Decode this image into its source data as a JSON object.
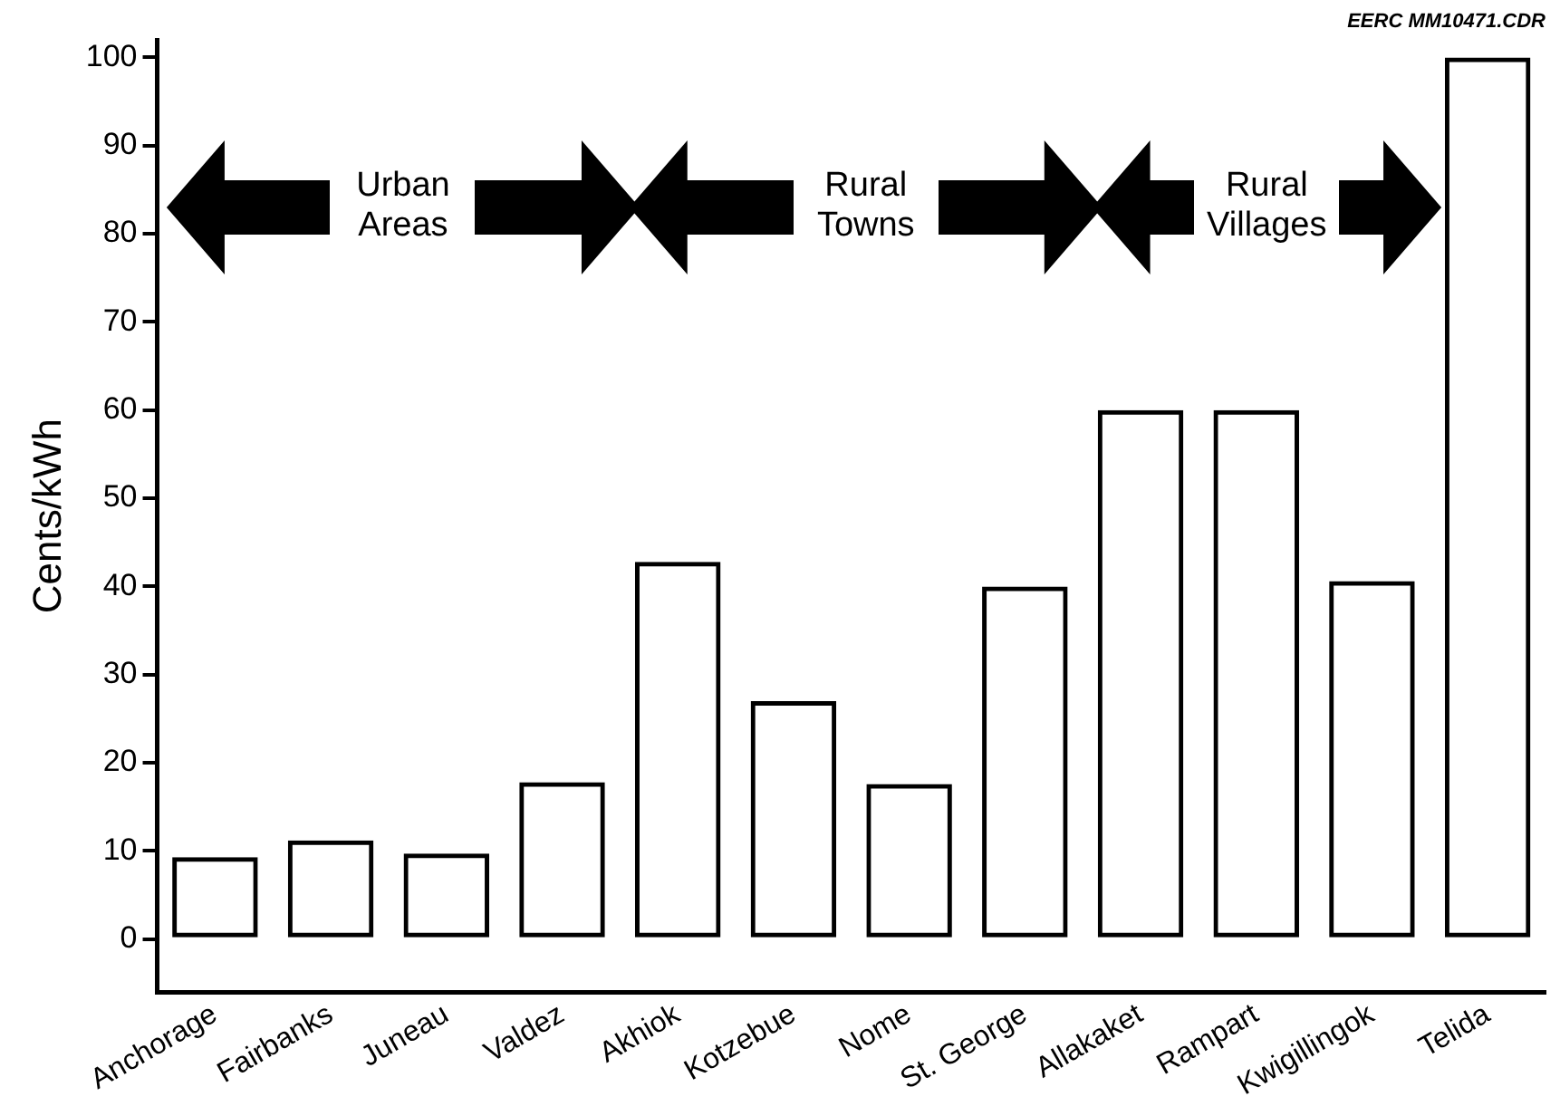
{
  "chart_data": {
    "type": "bar",
    "categories": [
      "Anchorage",
      "Fairbanks",
      "Juneau",
      "Valdez",
      "Akhiok",
      "Kotzebue",
      "Nome",
      "St. George",
      "Allakaket",
      "Rampart",
      "Kwigillingok",
      "Telida"
    ],
    "values": [
      9.3,
      11.2,
      9.7,
      17.8,
      42.8,
      27,
      17.6,
      40,
      60,
      60,
      40.6,
      100
    ],
    "color": "#000000",
    "ylabel": "Cents/kWh",
    "ylim": [
      -6,
      102
    ],
    "yticks": [
      0,
      10,
      20,
      30,
      40,
      50,
      60,
      70,
      80,
      90,
      100
    ],
    "grid": false,
    "legend": false,
    "annotations": [
      "Urban Areas",
      "Rural Towns",
      "Rural Villages",
      "EERC MM10471.CDR"
    ]
  }
}
